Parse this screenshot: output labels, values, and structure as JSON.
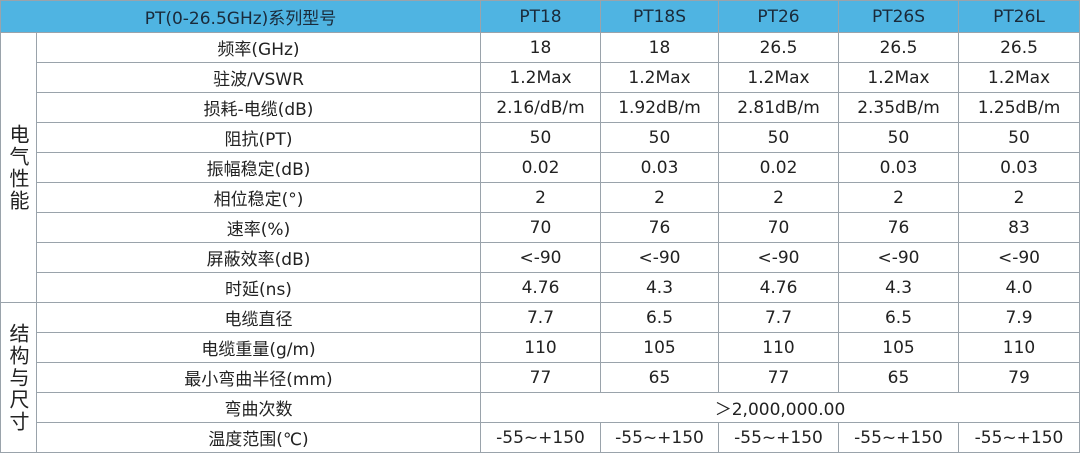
{
  "header": {
    "title": "PT(0-26.5GHz)系列型号",
    "models": [
      "PT18",
      "PT18S",
      "PT26",
      "PT26S",
      "PT26L"
    ]
  },
  "groups": [
    {
      "label": "电气性能",
      "rows": [
        {
          "label": "频率(GHz)",
          "values": [
            "18",
            "18",
            "26.5",
            "26.5",
            "26.5"
          ]
        },
        {
          "label": "驻波/VSWR",
          "values": [
            "1.2Max",
            "1.2Max",
            "1.2Max",
            "1.2Max",
            "1.2Max"
          ]
        },
        {
          "label": "损耗-电缆(dB)",
          "values": [
            "2.16/dB/m",
            "1.92dB/m",
            "2.81dB/m",
            "2.35dB/m",
            "1.25dB/m"
          ]
        },
        {
          "label": "阻抗(PT)",
          "values": [
            "50",
            "50",
            "50",
            "50",
            "50"
          ]
        },
        {
          "label": "振幅稳定(dB)",
          "values": [
            "0.02",
            "0.03",
            "0.02",
            "0.03",
            "0.03"
          ]
        },
        {
          "label": "相位稳定(°)",
          "values": [
            "2",
            "2",
            "2",
            "2",
            "2"
          ]
        },
        {
          "label": "速率(%)",
          "values": [
            "70",
            "76",
            "70",
            "76",
            "83"
          ]
        },
        {
          "label": "屏蔽效率(dB)",
          "values": [
            "<-90",
            "<-90",
            "<-90",
            "<-90",
            "<-90"
          ]
        },
        {
          "label": "时延(ns)",
          "values": [
            "4.76",
            "4.3",
            "4.76",
            "4.3",
            "4.0"
          ]
        }
      ]
    },
    {
      "label": "结构与尺寸",
      "rows": [
        {
          "label": "电缆直径",
          "values": [
            "7.7",
            "6.5",
            "7.7",
            "6.5",
            "7.9"
          ]
        },
        {
          "label": "电缆重量(g/m)",
          "values": [
            "110",
            "105",
            "110",
            "105",
            "110"
          ]
        },
        {
          "label": "最小弯曲半径(mm)",
          "values": [
            "77",
            "65",
            "77",
            "65",
            "79"
          ]
        },
        {
          "label": "弯曲次数",
          "values": [
            "＞2,000,000.00"
          ]
        },
        {
          "label": "温度范围(℃)",
          "values": [
            "-55~+150",
            "-55~+150",
            "-55~+150",
            "-55~+150",
            "-55~+150"
          ]
        }
      ]
    }
  ]
}
